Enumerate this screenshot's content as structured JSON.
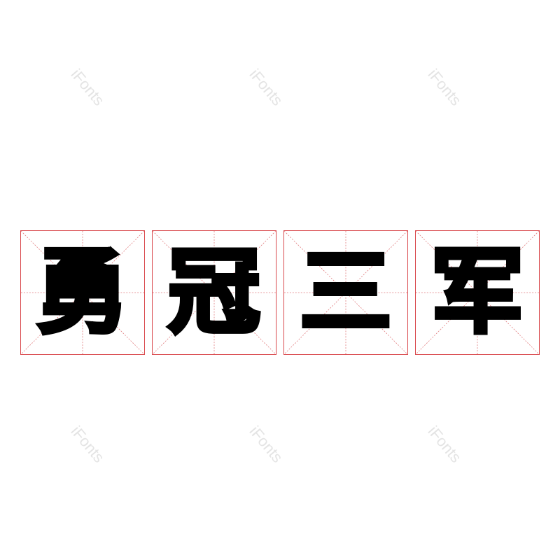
{
  "characters": [
    "勇",
    "冠",
    "三",
    "军"
  ],
  "watermark": "iFonts",
  "colors": {
    "grid": "#d9484c",
    "glyph": "#000000",
    "watermark": "#e4e4e4"
  }
}
